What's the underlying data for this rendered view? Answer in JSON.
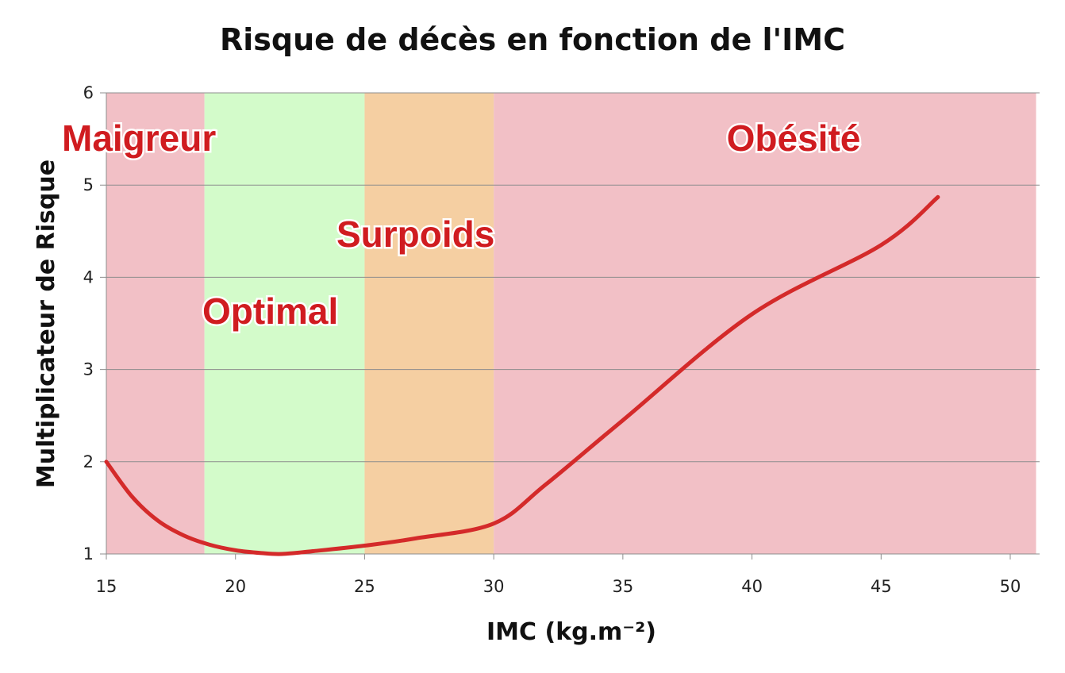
{
  "chart_data": {
    "type": "line",
    "title": "Risque de décès en fonction de l'IMC",
    "xlabel": "IMC (kg.m⁻²)",
    "ylabel": "Multiplicateur de Risque",
    "xlim": [
      15,
      51
    ],
    "ylim": [
      1,
      6
    ],
    "xticks": [
      "15",
      "20",
      "25",
      "30",
      "35",
      "40",
      "45",
      "50"
    ],
    "yticks": [
      "1",
      "2",
      "3",
      "4",
      "5",
      "6"
    ],
    "grid": true,
    "zones": [
      {
        "label": "Maigreur",
        "from": 15,
        "to": 18.8,
        "color": "#f2c0c6"
      },
      {
        "label": "Optimal",
        "from": 18.8,
        "to": 25,
        "color": "#d3fbca"
      },
      {
        "label": "Surpoids",
        "from": 25,
        "to": 30,
        "color": "#f5cfa2"
      },
      {
        "label": "Obésité",
        "from": 30,
        "to": 51,
        "color": "#f2c0c6"
      }
    ],
    "series": [
      {
        "color": "#d42a2a",
        "x": [
          15,
          16,
          17,
          18,
          19,
          20,
          21,
          21.8,
          23,
          25,
          27,
          30,
          32,
          35,
          40,
          45,
          47.2
        ],
        "y": [
          2.0,
          1.62,
          1.36,
          1.2,
          1.1,
          1.04,
          1.01,
          1.0,
          1.03,
          1.09,
          1.17,
          1.33,
          1.75,
          2.45,
          3.6,
          4.35,
          4.87
        ]
      }
    ]
  }
}
